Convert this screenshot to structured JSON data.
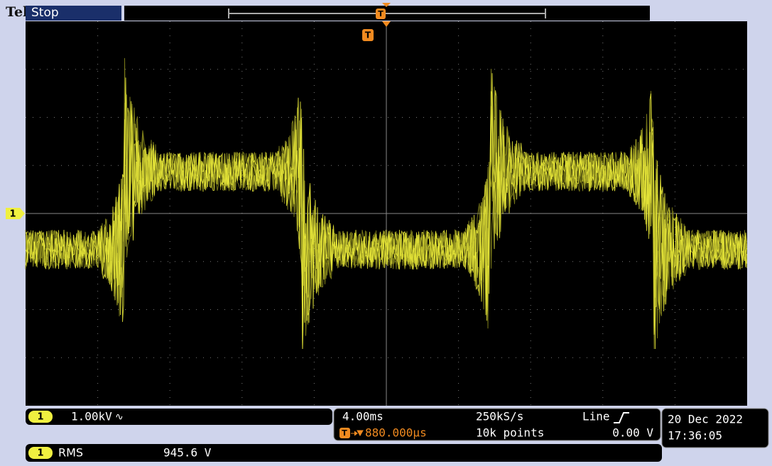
{
  "header": {
    "brand": "Tek",
    "status": "Stop",
    "trigger_marker": "T"
  },
  "screen": {
    "channel_marker": "1",
    "trigger_marker": "T"
  },
  "channel": {
    "number": "1",
    "scale": "1.00kV",
    "coupling": "∿"
  },
  "timebase": {
    "scale": "4.00ms",
    "sample_rate": "250kS/s",
    "trigger_source": "Line",
    "trigger_marker": "T",
    "trigger_position": "880.000µs",
    "record_length": "10k points",
    "trigger_level": "0.00 V"
  },
  "datetime": {
    "date": "20 Dec 2022",
    "time": "17:36:05"
  },
  "measurement": {
    "channel": "1",
    "name": "RMS",
    "value": "945.6 V"
  }
}
